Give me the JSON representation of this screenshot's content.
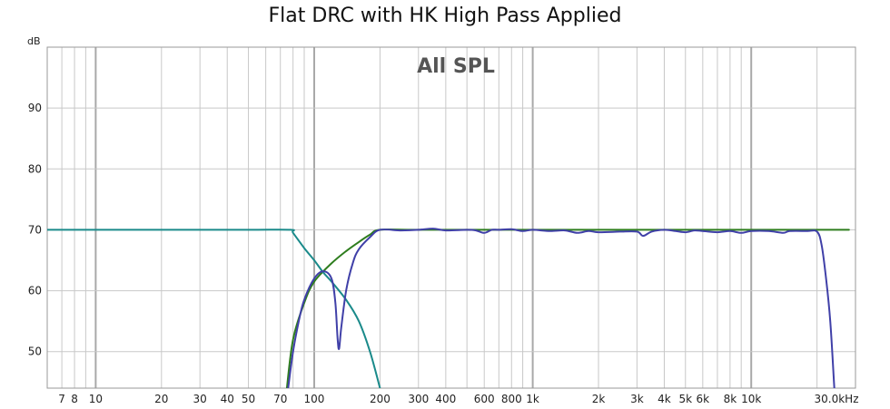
{
  "chart_data": {
    "type": "line",
    "title": "Flat DRC with HK High Pass Applied",
    "subtitle": "All SPL",
    "ylabel": "dB",
    "xaxis": {
      "scale": "log",
      "range_hz": [
        6,
        30000
      ],
      "tick_values": [
        7,
        8,
        10,
        20,
        30,
        40,
        50,
        70,
        100,
        200,
        300,
        400,
        600,
        800,
        1000,
        2000,
        3000,
        4000,
        5000,
        6000,
        8000,
        10000,
        30000
      ],
      "tick_labels": [
        "7",
        "8",
        "10",
        "20",
        "30",
        "40",
        "50",
        "70",
        "100",
        "200",
        "300",
        "400",
        "600",
        "800",
        "1k",
        "2k",
        "3k",
        "4k",
        "5k",
        "6k",
        "8k",
        "10k",
        "30.0kHz"
      ]
    },
    "yaxis": {
      "range_db": [
        44,
        100
      ],
      "tick_values": [
        50,
        60,
        70,
        80,
        90
      ],
      "tick_labels": [
        "50",
        "60",
        "70",
        "80",
        "90"
      ]
    },
    "grid": true,
    "colors": {
      "high_pass": "#2e7d1e",
      "low_pass": "#1a8a8a",
      "measured": "#4040a8",
      "grid": "#c8c8c8",
      "grid_major": "#a8a8a8"
    },
    "series": [
      {
        "key": "high_pass",
        "points": [
          [
            75,
            44
          ],
          [
            80,
            52
          ],
          [
            90,
            58
          ],
          [
            100,
            61.5
          ],
          [
            120,
            64.5
          ],
          [
            140,
            66.5
          ],
          [
            160,
            68
          ],
          [
            180,
            69.2
          ],
          [
            200,
            70
          ],
          [
            300,
            70
          ],
          [
            1000,
            70
          ],
          [
            10000,
            70
          ],
          [
            28000,
            70
          ]
        ]
      },
      {
        "key": "low_pass",
        "points": [
          [
            6,
            70
          ],
          [
            20,
            70
          ],
          [
            50,
            70
          ],
          [
            78,
            70
          ],
          [
            80,
            69.5
          ],
          [
            90,
            67
          ],
          [
            100,
            65
          ],
          [
            110,
            63
          ],
          [
            120,
            61.5
          ],
          [
            140,
            58.5
          ],
          [
            160,
            55
          ],
          [
            180,
            50
          ],
          [
            200,
            44
          ]
        ]
      },
      {
        "key": "measured",
        "points": [
          [
            76,
            44
          ],
          [
            80,
            50
          ],
          [
            85,
            55
          ],
          [
            90,
            58.5
          ],
          [
            100,
            62
          ],
          [
            110,
            63.2
          ],
          [
            120,
            62
          ],
          [
            125,
            58
          ],
          [
            128,
            52
          ],
          [
            130,
            50.5
          ],
          [
            133,
            54
          ],
          [
            140,
            60
          ],
          [
            150,
            64.5
          ],
          [
            160,
            66.8
          ],
          [
            180,
            68.8
          ],
          [
            200,
            70
          ],
          [
            250,
            69.9
          ],
          [
            300,
            70
          ],
          [
            350,
            70.2
          ],
          [
            400,
            69.9
          ],
          [
            500,
            70
          ],
          [
            550,
            69.9
          ],
          [
            600,
            69.5
          ],
          [
            650,
            70
          ],
          [
            700,
            70
          ],
          [
            800,
            70.1
          ],
          [
            900,
            69.8
          ],
          [
            1000,
            70
          ],
          [
            1200,
            69.8
          ],
          [
            1400,
            69.9
          ],
          [
            1600,
            69.5
          ],
          [
            1800,
            69.8
          ],
          [
            2000,
            69.6
          ],
          [
            2500,
            69.7
          ],
          [
            3000,
            69.7
          ],
          [
            3200,
            69
          ],
          [
            3500,
            69.7
          ],
          [
            4000,
            70
          ],
          [
            4500,
            69.8
          ],
          [
            5000,
            69.6
          ],
          [
            5500,
            69.9
          ],
          [
            6000,
            69.8
          ],
          [
            7000,
            69.6
          ],
          [
            8000,
            69.8
          ],
          [
            9000,
            69.5
          ],
          [
            10000,
            69.8
          ],
          [
            12000,
            69.8
          ],
          [
            14000,
            69.5
          ],
          [
            15000,
            69.8
          ],
          [
            18000,
            69.8
          ],
          [
            20000,
            69.7
          ],
          [
            21000,
            67.5
          ],
          [
            22000,
            62
          ],
          [
            23000,
            55
          ],
          [
            24000,
            44
          ]
        ]
      }
    ]
  }
}
